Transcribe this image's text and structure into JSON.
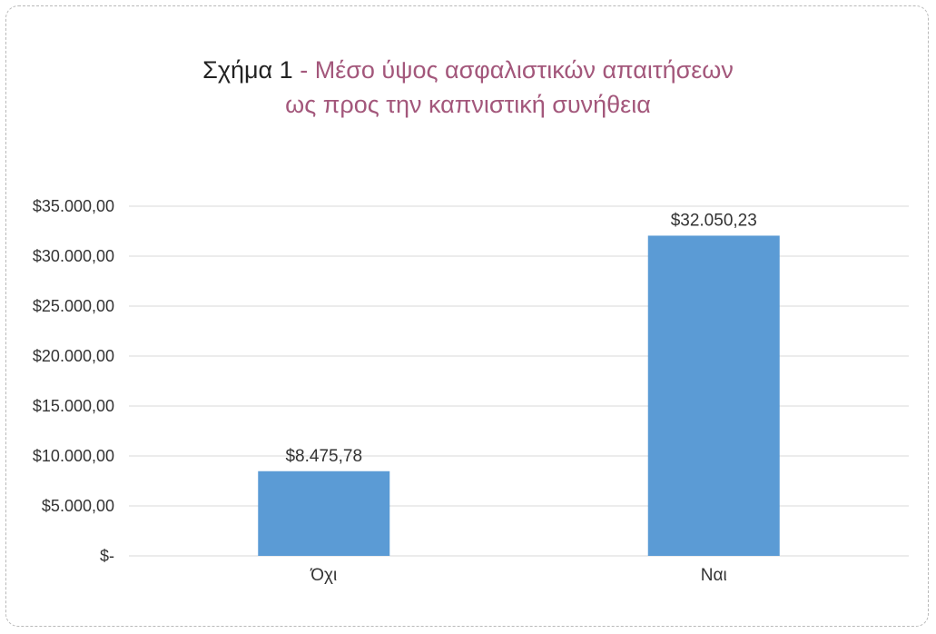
{
  "chart_data": {
    "type": "bar",
    "title_prefix": "Σχήμα 1",
    "title_separator": "-",
    "title_line1": "Μέσο ύψος ασφαλιστικών απαιτήσεων",
    "title_line2": "ως προς την καπνιστική συνήθεια",
    "xlabel": "",
    "ylabel": "",
    "categories": [
      "Όχι",
      "Ναι"
    ],
    "values": [
      8475.78,
      32050.23
    ],
    "data_labels": [
      "$8.475,78",
      "$32.050,23"
    ],
    "ylim": [
      0,
      35000
    ],
    "y_ticks": [
      0,
      5000,
      10000,
      15000,
      20000,
      25000,
      30000,
      35000
    ],
    "y_tick_labels": [
      "$-",
      "$5.000,00",
      "$10.000,00",
      "$15.000,00",
      "$20.000,00",
      "$25.000,00",
      "$30.000,00",
      "$35.000,00"
    ],
    "grid": true,
    "legend": "none",
    "colors": {
      "bar": "#5b9bd5",
      "grid": "#d9d9d9",
      "title": "#a3577b",
      "title_prefix": "#222222",
      "text": "#333333"
    }
  }
}
